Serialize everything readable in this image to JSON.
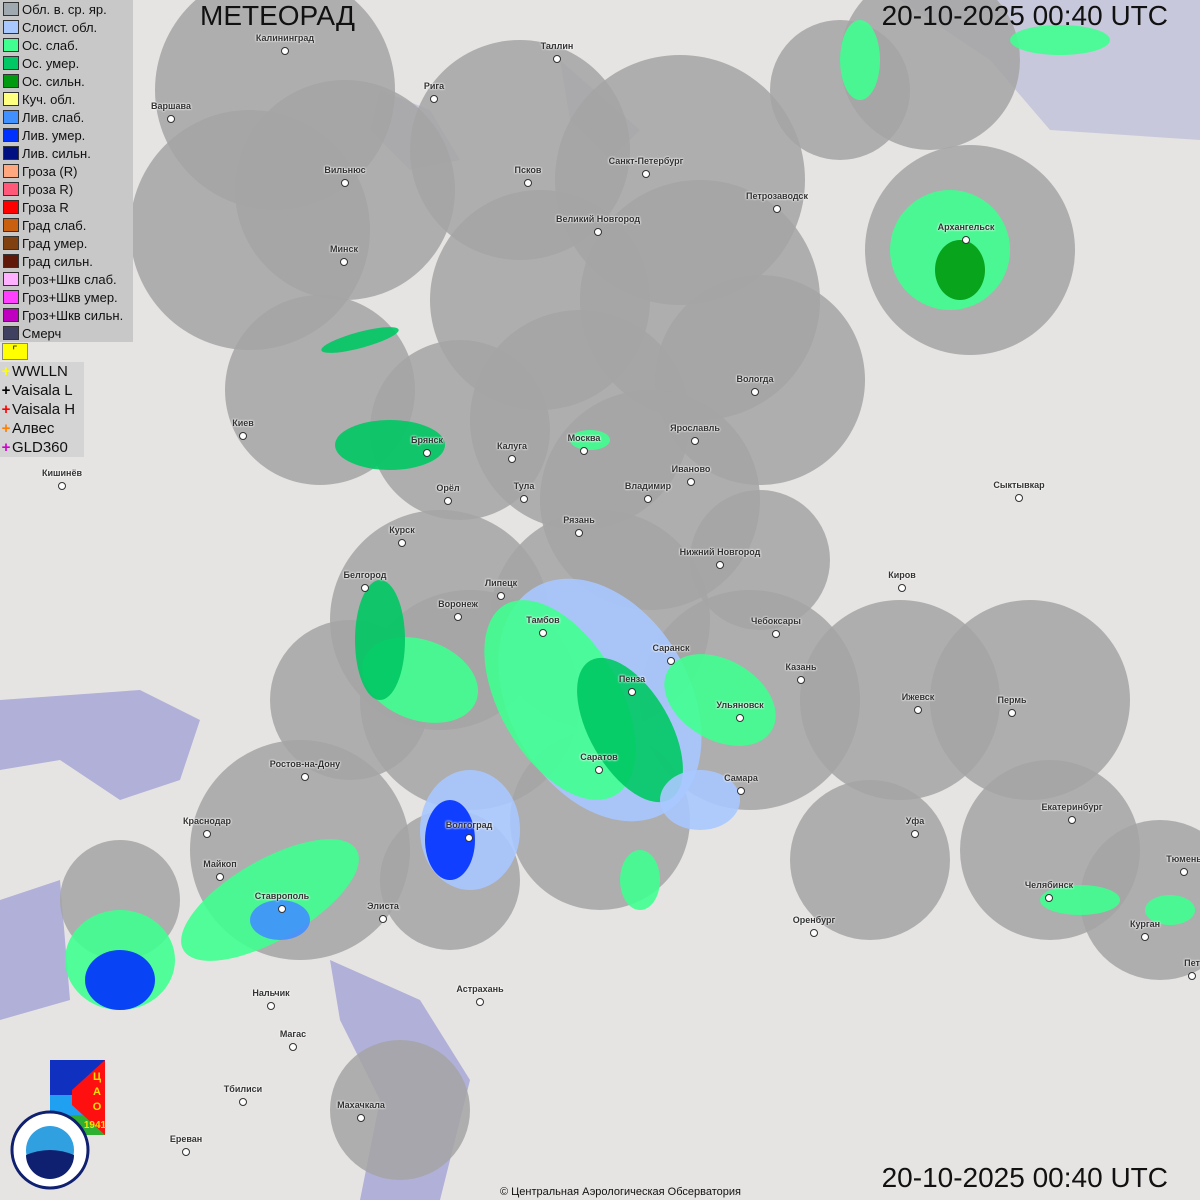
{
  "header": {
    "title": "МЕТЕОРАД",
    "timestamp": "20-10-2025  00:40 UTC"
  },
  "footer": {
    "timestamp": "20-10-2025  00:40 UTC",
    "copyright": "© Центральная Аэрологическая Обсерватория"
  },
  "legend": {
    "items": [
      {
        "label": "Обл. в. ср. яр.",
        "color": "#a0a8b0"
      },
      {
        "label": "Слоист. обл.",
        "color": "#a8c8ff"
      },
      {
        "label": "Ос. слаб.",
        "color": "#40ff90"
      },
      {
        "label": "Ос. умер.",
        "color": "#00c864"
      },
      {
        "label": "Ос. сильн.",
        "color": "#009a10"
      },
      {
        "label": "Куч. обл.",
        "color": "#ffff80"
      },
      {
        "label": "Лив. слаб.",
        "color": "#4090ff"
      },
      {
        "label": "Лив. умер.",
        "color": "#0030ff"
      },
      {
        "label": "Лив. сильн.",
        "color": "#001080"
      },
      {
        "label": "Гроза (R)",
        "color": "#ffa880"
      },
      {
        "label": "Гроза R)",
        "color": "#ff5878"
      },
      {
        "label": "Гроза R",
        "color": "#ff0000"
      },
      {
        "label": "Град слаб.",
        "color": "#c86010"
      },
      {
        "label": "Град умер.",
        "color": "#804010"
      },
      {
        "label": "Град сильн.",
        "color": "#601808"
      },
      {
        "label": "Гроз+Шкв слаб.",
        "color": "#ffb0ff"
      },
      {
        "label": "Гроз+Шкв умер.",
        "color": "#ff40ff"
      },
      {
        "label": "Гроз+Шкв сильн.",
        "color": "#c000c0"
      },
      {
        "label": "Смерч",
        "color": "#404060"
      }
    ],
    "lightning": [
      {
        "label": "WWLLN",
        "color": "#ffff00"
      },
      {
        "label": "Vaisala L",
        "color": "#000000"
      },
      {
        "label": "Vaisala H",
        "color": "#ff0000"
      },
      {
        "label": "Алвес",
        "color": "#ff8000"
      },
      {
        "label": "GLD360",
        "color": "#d000d0"
      }
    ]
  },
  "logos": {
    "tsao": "ЦАО 1941",
    "roshydromet": "РОСГИДРОМЕТ ROSHYDROMET"
  },
  "map": {
    "cities": [
      "Калининград",
      "Таллин",
      "Рига",
      "Варшава",
      "Санкт-Петербург",
      "Вильнюс",
      "Псков",
      "Петрозаводск",
      "Великий Новгород",
      "Архангельск",
      "Минск",
      "Вологда",
      "Киев",
      "Ярославль",
      "Москва",
      "Брянск",
      "Калуга",
      "Иваново",
      "Кишинёв",
      "Орёл",
      "Тула",
      "Владимир",
      "Сыктывкар",
      "Рязань",
      "Курск",
      "Нижний Новгород",
      "Киров",
      "Белгород",
      "Липецк",
      "Воронеж",
      "Тамбов",
      "Чебоксары",
      "Саранск",
      "Казань",
      "Пенза",
      "Ижевск",
      "Пермь",
      "Ульяновск",
      "Ростов-на-Дону",
      "Саратов",
      "Самара",
      "Екатеринбург",
      "Краснодар",
      "Уфа",
      "Волгоград",
      "Тюмень",
      "Майкоп",
      "Челябинск",
      "Ставрополь",
      "Элиста",
      "Оренбург",
      "Курган",
      "Пет",
      "Астрахань",
      "Нальчик",
      "Магас",
      "Тбилиси",
      "Махачкала",
      "Ереван"
    ]
  }
}
